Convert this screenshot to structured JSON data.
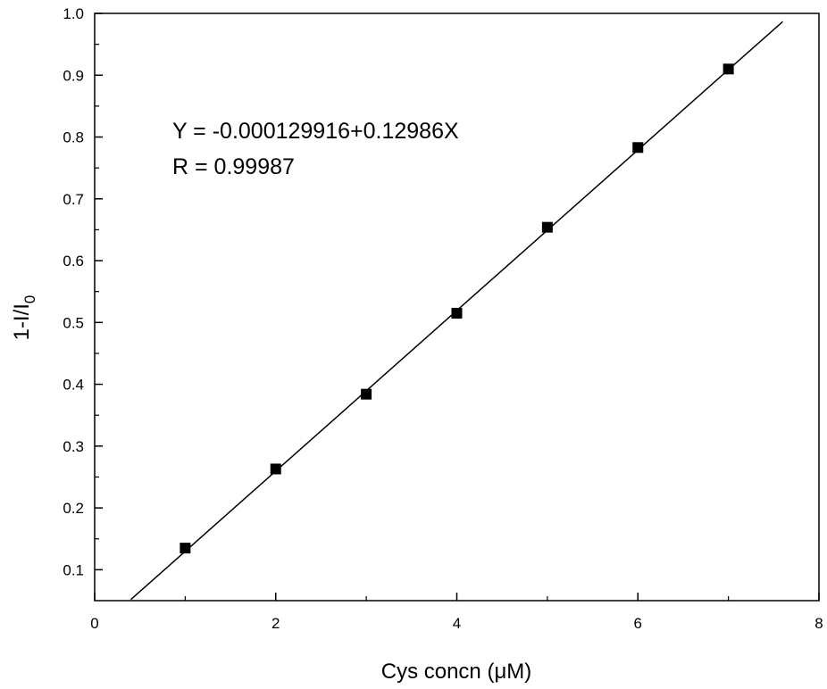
{
  "chart_data": {
    "type": "scatter",
    "title": "",
    "xlabel": "Cys concn (μM)",
    "ylabel": {
      "main": "1-I/I",
      "subscript": "0"
    },
    "xlim": [
      0,
      8
    ],
    "ylim": [
      0.05,
      1.0
    ],
    "x_ticks": [
      0,
      2,
      4,
      6,
      8
    ],
    "x_tick_labels": [
      "0",
      "2",
      "4",
      "6",
      "8"
    ],
    "y_ticks": [
      0.1,
      0.2,
      0.3,
      0.4,
      0.5,
      0.6,
      0.7,
      0.8,
      0.9,
      1.0
    ],
    "y_tick_labels": [
      "0.1",
      "0.2",
      "0.3",
      "0.4",
      "0.5",
      "0.6",
      "0.7",
      "0.8",
      "0.9",
      "1.0"
    ],
    "grid": false,
    "series": [
      {
        "marker": "square",
        "color": "#000000",
        "x": [
          1,
          2,
          3,
          4,
          5,
          6,
          7
        ],
        "y": [
          0.135,
          0.263,
          0.384,
          0.515,
          0.654,
          0.783,
          0.91
        ]
      }
    ],
    "fit_line": {
      "intercept": -0.000129916,
      "slope": 0.12986,
      "x_range": [
        0.4,
        7.6
      ],
      "color": "#000000"
    },
    "annotations": [
      "Y = -0.000129916+0.12986X",
      "R = 0.99987"
    ]
  }
}
